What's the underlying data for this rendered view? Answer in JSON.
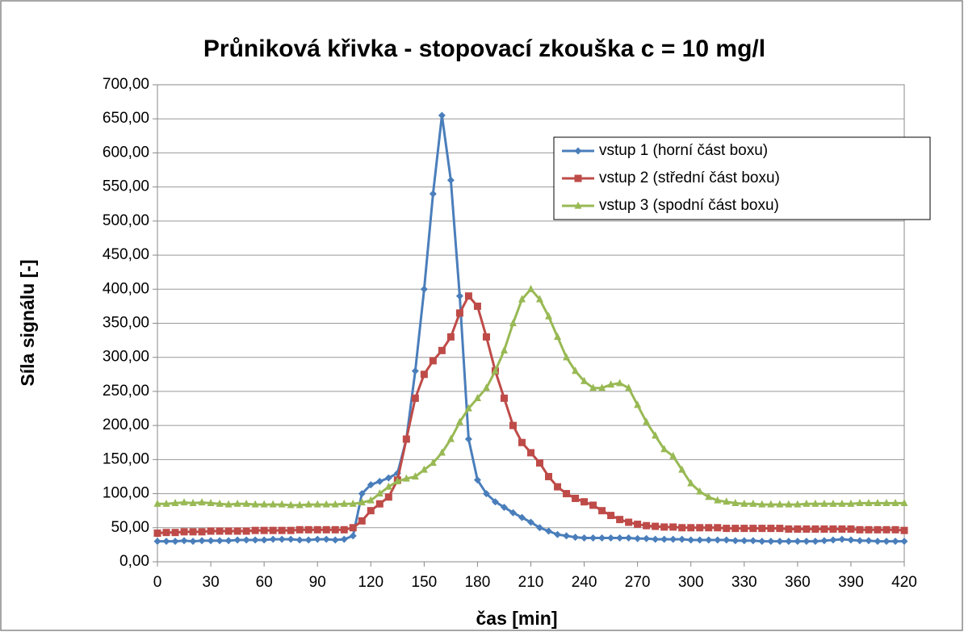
{
  "chart_data": {
    "type": "line",
    "title": "Průniková křivka -  stopovací zkouška c = 10 mg/l",
    "xlabel": "čas [min]",
    "ylabel": "Síla signálu [-]",
    "x": [
      0,
      5,
      10,
      15,
      20,
      25,
      30,
      35,
      40,
      45,
      50,
      55,
      60,
      65,
      70,
      75,
      80,
      85,
      90,
      95,
      100,
      105,
      110,
      115,
      120,
      125,
      130,
      135,
      140,
      145,
      150,
      155,
      160,
      165,
      170,
      175,
      180,
      185,
      190,
      195,
      200,
      205,
      210,
      215,
      220,
      225,
      230,
      235,
      240,
      245,
      250,
      255,
      260,
      265,
      270,
      275,
      280,
      285,
      290,
      295,
      300,
      305,
      310,
      315,
      320,
      325,
      330,
      335,
      340,
      345,
      350,
      355,
      360,
      365,
      370,
      375,
      380,
      385,
      390,
      395,
      400,
      405,
      410,
      415,
      420
    ],
    "series": [
      {
        "name": "vstup 1 (horní část boxu)",
        "color": "#4a7ebb",
        "marker": "diamond",
        "values": [
          30,
          30,
          30,
          31,
          30,
          31,
          31,
          31,
          31,
          32,
          32,
          32,
          32,
          33,
          33,
          33,
          32,
          32,
          33,
          33,
          32,
          33,
          38,
          100,
          113,
          118,
          123,
          130,
          180,
          280,
          400,
          540,
          655,
          560,
          390,
          180,
          120,
          100,
          88,
          80,
          72,
          65,
          58,
          50,
          45,
          40,
          38,
          36,
          35,
          35,
          35,
          35,
          35,
          35,
          34,
          34,
          33,
          33,
          33,
          33,
          32,
          32,
          32,
          32,
          32,
          31,
          31,
          31,
          30,
          30,
          30,
          30,
          30,
          30,
          30,
          31,
          32,
          33,
          32,
          31,
          31,
          30,
          30,
          30,
          30
        ]
      },
      {
        "name": "vstup 2 (střední část boxu)",
        "color": "#be4b48",
        "marker": "square",
        "values": [
          42,
          43,
          43,
          44,
          44,
          44,
          45,
          45,
          45,
          45,
          45,
          46,
          46,
          46,
          46,
          46,
          47,
          47,
          47,
          47,
          47,
          47,
          50,
          60,
          75,
          85,
          95,
          120,
          180,
          240,
          275,
          295,
          310,
          330,
          365,
          390,
          375,
          330,
          280,
          240,
          200,
          175,
          160,
          145,
          125,
          110,
          100,
          93,
          88,
          83,
          75,
          68,
          62,
          58,
          55,
          53,
          52,
          51,
          51,
          50,
          50,
          50,
          50,
          50,
          49,
          49,
          49,
          49,
          49,
          49,
          49,
          48,
          48,
          48,
          48,
          48,
          48,
          48,
          48,
          47,
          47,
          47,
          47,
          47,
          46
        ]
      },
      {
        "name": "vstup 3 (spodní část boxu)",
        "color": "#98b954",
        "marker": "triangle",
        "values": [
          85,
          85,
          86,
          87,
          86,
          87,
          86,
          85,
          84,
          85,
          85,
          84,
          84,
          84,
          84,
          83,
          83,
          84,
          84,
          84,
          84,
          85,
          85,
          87,
          90,
          100,
          110,
          118,
          122,
          125,
          135,
          145,
          160,
          180,
          205,
          225,
          240,
          255,
          280,
          310,
          350,
          385,
          400,
          385,
          360,
          330,
          300,
          280,
          265,
          255,
          255,
          260,
          262,
          255,
          230,
          205,
          185,
          165,
          155,
          135,
          115,
          103,
          95,
          90,
          88,
          86,
          85,
          85,
          84,
          84,
          84,
          84,
          84,
          85,
          85,
          85,
          85,
          85,
          85,
          86,
          86,
          86,
          86,
          86,
          86
        ]
      }
    ],
    "xlim": [
      0,
      420
    ],
    "xticks": [
      0,
      30,
      60,
      90,
      120,
      150,
      180,
      210,
      240,
      270,
      300,
      330,
      360,
      390,
      420
    ],
    "ylim": [
      0,
      700
    ],
    "yticks": [
      {
        "value": 0,
        "label": "0,00"
      },
      {
        "value": 50,
        "label": "50,00"
      },
      {
        "value": 100,
        "label": "100,00"
      },
      {
        "value": 150,
        "label": "150,00"
      },
      {
        "value": 200,
        "label": "200,00"
      },
      {
        "value": 250,
        "label": "250,00"
      },
      {
        "value": 300,
        "label": "300,00"
      },
      {
        "value": 350,
        "label": "350,00"
      },
      {
        "value": 400,
        "label": "400,00"
      },
      {
        "value": 450,
        "label": "450,00"
      },
      {
        "value": 500,
        "label": "500,00"
      },
      {
        "value": 550,
        "label": "550,00"
      },
      {
        "value": 600,
        "label": "600,00"
      },
      {
        "value": 650,
        "label": "650,00"
      },
      {
        "value": 700,
        "label": "700,00"
      }
    ],
    "grid": true,
    "legend": "upper right"
  }
}
